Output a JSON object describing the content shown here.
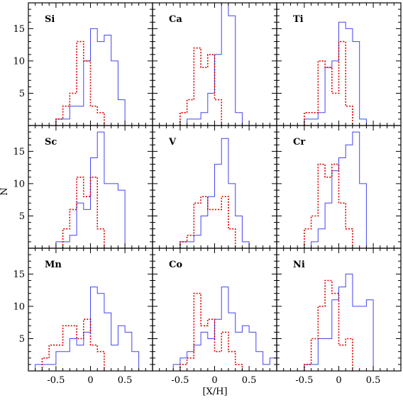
{
  "figure": {
    "xlabel": "[X/H]",
    "ylabel": "N",
    "x_tick_labels": [
      "-0.5",
      "0",
      "0.5"
    ],
    "y_tick_labels": [
      "5",
      "10",
      "15"
    ]
  },
  "chart_data": [
    {
      "type": "histogram",
      "label": "Si",
      "xlim": [
        -0.9,
        0.9
      ],
      "ylim": [
        0,
        19
      ],
      "series": [
        {
          "color": "#4444ee",
          "style": "solid",
          "edges": [
            -0.5,
            -0.4,
            -0.3,
            -0.2,
            -0.1,
            0,
            0.1,
            0.2,
            0.3,
            0.4,
            0.5
          ],
          "counts": [
            1,
            1,
            3,
            3,
            10,
            15,
            13,
            14,
            10,
            4
          ]
        },
        {
          "color": "#dd0000",
          "style": "dotted",
          "edges": [
            -0.5,
            -0.4,
            -0.3,
            -0.2,
            -0.1,
            0,
            0.1,
            0.2
          ],
          "counts": [
            1,
            3,
            5,
            13,
            10,
            3,
            2
          ]
        }
      ]
    },
    {
      "type": "histogram",
      "label": "Ca",
      "xlim": [
        -0.9,
        0.9
      ],
      "ylim": [
        0,
        19
      ],
      "series": [
        {
          "color": "#4444ee",
          "style": "solid",
          "edges": [
            -0.4,
            -0.3,
            -0.2,
            -0.1,
            0,
            0.1,
            0.2,
            0.3,
            0.4
          ],
          "counts": [
            1,
            1,
            2,
            5,
            11,
            19,
            17,
            2
          ]
        },
        {
          "color": "#dd0000",
          "style": "dotted",
          "edges": [
            -0.5,
            -0.4,
            -0.3,
            -0.2,
            -0.1,
            0,
            0.1
          ],
          "counts": [
            2,
            4,
            12,
            9,
            11,
            4
          ]
        }
      ]
    },
    {
      "type": "histogram",
      "label": "Ti",
      "xlim": [
        -0.9,
        0.9
      ],
      "ylim": [
        0,
        19
      ],
      "series": [
        {
          "color": "#4444ee",
          "style": "solid",
          "edges": [
            -0.5,
            -0.4,
            -0.3,
            -0.2,
            -0.1,
            0,
            0.1,
            0.2,
            0.3,
            0.4
          ],
          "counts": [
            1,
            1,
            2,
            9,
            10,
            16,
            15,
            13,
            1
          ]
        },
        {
          "color": "#dd0000",
          "style": "dotted",
          "edges": [
            -0.5,
            -0.4,
            -0.3,
            -0.2,
            -0.1,
            0,
            0.1,
            0.2
          ],
          "counts": [
            2,
            2,
            10,
            9,
            5,
            13,
            3
          ]
        }
      ]
    },
    {
      "type": "histogram",
      "label": "Sc",
      "xlim": [
        -0.9,
        0.9
      ],
      "ylim": [
        0,
        19
      ],
      "series": [
        {
          "color": "#4444ee",
          "style": "solid",
          "edges": [
            -0.5,
            -0.4,
            -0.3,
            -0.2,
            -0.1,
            0,
            0.1,
            0.2,
            0.3,
            0.4,
            0.5
          ],
          "counts": [
            1,
            1,
            2,
            7,
            6,
            14,
            18,
            10,
            10,
            9
          ]
        },
        {
          "color": "#dd0000",
          "style": "dotted",
          "edges": [
            -0.4,
            -0.3,
            -0.2,
            -0.1,
            0,
            0.1,
            0.2
          ],
          "counts": [
            3,
            6,
            11,
            8,
            11,
            3
          ]
        }
      ]
    },
    {
      "type": "histogram",
      "label": "V",
      "xlim": [
        -0.9,
        0.9
      ],
      "ylim": [
        0,
        19
      ],
      "series": [
        {
          "color": "#4444ee",
          "style": "solid",
          "edges": [
            -0.5,
            -0.4,
            -0.3,
            -0.2,
            -0.1,
            0,
            0.1,
            0.2,
            0.3,
            0.4,
            0.5
          ],
          "counts": [
            1,
            1,
            2,
            5,
            8,
            13,
            17,
            10,
            5,
            1
          ]
        },
        {
          "color": "#dd0000",
          "style": "dotted",
          "edges": [
            -0.5,
            -0.4,
            -0.3,
            -0.2,
            -0.1,
            0,
            0.1,
            0.2,
            0.3
          ],
          "counts": [
            1,
            2,
            7,
            8,
            6,
            6,
            8,
            3
          ]
        }
      ]
    },
    {
      "type": "histogram",
      "label": "Cr",
      "xlim": [
        -0.9,
        0.9
      ],
      "ylim": [
        0,
        19
      ],
      "series": [
        {
          "color": "#4444ee",
          "style": "solid",
          "edges": [
            -0.4,
            -0.3,
            -0.2,
            -0.1,
            0,
            0.1,
            0.2,
            0.3,
            0.4
          ],
          "counts": [
            1,
            3,
            7,
            12,
            14,
            16,
            18,
            10
          ]
        },
        {
          "color": "#dd0000",
          "style": "dotted",
          "edges": [
            -0.5,
            -0.4,
            -0.3,
            -0.2,
            -0.1,
            0,
            0.1,
            0.2
          ],
          "counts": [
            3,
            5,
            13,
            11,
            13,
            7,
            3
          ]
        }
      ]
    },
    {
      "type": "histogram",
      "label": "Mn",
      "xlim": [
        -0.9,
        0.9
      ],
      "ylim": [
        0,
        19
      ],
      "series": [
        {
          "color": "#4444ee",
          "style": "solid",
          "edges": [
            -0.8,
            -0.7,
            -0.6,
            -0.5,
            -0.4,
            -0.3,
            -0.2,
            -0.1,
            0,
            0.1,
            0.2,
            0.3,
            0.4,
            0.5,
            0.6,
            0.7
          ],
          "counts": [
            1,
            1,
            1,
            3,
            3,
            5,
            4,
            6,
            13,
            12,
            9,
            4,
            7,
            6,
            3
          ]
        },
        {
          "color": "#dd0000",
          "style": "dotted",
          "edges": [
            -0.7,
            -0.6,
            -0.5,
            -0.4,
            -0.3,
            -0.2,
            -0.1,
            0,
            0.1,
            0.2
          ],
          "counts": [
            2,
            4,
            4,
            7,
            7,
            5,
            8,
            4,
            3
          ]
        }
      ]
    },
    {
      "type": "histogram",
      "label": "Co",
      "xlim": [
        -0.9,
        0.9
      ],
      "ylim": [
        0,
        19
      ],
      "series": [
        {
          "color": "#4444ee",
          "style": "solid",
          "edges": [
            -0.6,
            -0.5,
            -0.4,
            -0.3,
            -0.2,
            -0.1,
            0,
            0.1,
            0.2,
            0.3,
            0.4,
            0.5,
            0.6,
            0.7,
            0.8,
            0.9
          ],
          "counts": [
            1,
            2,
            3,
            4,
            6,
            5,
            8,
            13,
            9,
            6,
            7,
            6,
            3,
            1,
            2
          ]
        },
        {
          "color": "#dd0000",
          "style": "dotted",
          "edges": [
            -0.5,
            -0.4,
            -0.3,
            -0.2,
            -0.1,
            0,
            0.1,
            0.2,
            0.3,
            0.4
          ],
          "counts": [
            1,
            2,
            12,
            7,
            8,
            3,
            6,
            3,
            1
          ]
        }
      ]
    },
    {
      "type": "histogram",
      "label": "Ni",
      "xlim": [
        -0.9,
        0.9
      ],
      "ylim": [
        0,
        19
      ],
      "series": [
        {
          "color": "#4444ee",
          "style": "solid",
          "edges": [
            -0.5,
            -0.4,
            -0.3,
            -0.2,
            -0.1,
            0,
            0.1,
            0.2,
            0.3,
            0.4,
            0.5
          ],
          "counts": [
            1,
            1,
            5,
            5,
            11,
            13,
            15,
            10,
            10,
            11
          ]
        },
        {
          "color": "#dd0000",
          "style": "dotted",
          "edges": [
            -0.5,
            -0.4,
            -0.3,
            -0.2,
            -0.1,
            0,
            0.1,
            0.2
          ],
          "counts": [
            1,
            5,
            10,
            14,
            12,
            4,
            5
          ]
        }
      ]
    }
  ]
}
